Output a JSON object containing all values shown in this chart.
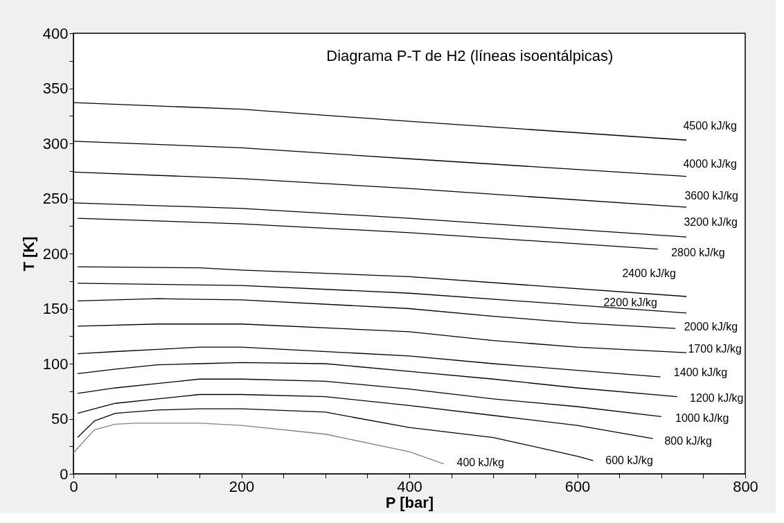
{
  "chart_data": {
    "type": "line",
    "title": "Diagrama P-T de H2 (líneas isoentálpicas)",
    "xlabel": "P [bar]",
    "ylabel": "T [K]",
    "xlim": [
      0,
      800
    ],
    "ylim": [
      0,
      400
    ],
    "xticks": [
      0,
      {
        "value": 50,
        "label": null
      },
      {
        "value": 100,
        "label": null
      },
      {
        "value": 150,
        "label": null
      },
      200,
      {
        "value": 250,
        "label": null
      },
      {
        "value": 300,
        "label": null
      },
      {
        "value": 350,
        "label": null
      },
      400,
      {
        "value": 450,
        "label": null
      },
      {
        "value": 500,
        "label": null
      },
      {
        "value": 550,
        "label": null
      },
      600,
      {
        "value": 650,
        "label": null
      },
      {
        "value": 700,
        "label": null
      },
      {
        "value": 750,
        "label": null
      },
      800
    ],
    "yticks": [
      0,
      {
        "value": 25,
        "label": null
      },
      50,
      {
        "value": 75,
        "label": null
      },
      100,
      {
        "value": 125,
        "label": null
      },
      150,
      {
        "value": 175,
        "label": null
      },
      200,
      {
        "value": 225,
        "label": null
      },
      250,
      {
        "value": 275,
        "label": null
      },
      300,
      {
        "value": 325,
        "label": null
      },
      350,
      {
        "value": 375,
        "label": null
      },
      400
    ],
    "grid": false,
    "legend": false,
    "marker": "none",
    "line_style": "solid",
    "series": [
      {
        "name": "4500 kJ/kg",
        "color": "#000000",
        "x": [
          0,
          200,
          400,
          730
        ],
        "values": [
          337,
          331,
          320,
          303
        ]
      },
      {
        "name": "4000 kJ/kg",
        "color": "#000000",
        "x": [
          0,
          200,
          400,
          730
        ],
        "values": [
          302,
          296,
          286,
          270
        ]
      },
      {
        "name": "3600 kJ/kg",
        "color": "#000000",
        "x": [
          0,
          200,
          400,
          730
        ],
        "values": [
          274,
          268,
          259,
          242
        ]
      },
      {
        "name": "3200 kJ/kg",
        "color": "#000000",
        "x": [
          0,
          200,
          400,
          730
        ],
        "values": [
          246,
          241,
          232,
          215
        ]
      },
      {
        "name": "2800 kJ/kg",
        "color": "#000000",
        "x": [
          5,
          200,
          400,
          696
        ],
        "values": [
          232,
          227,
          219,
          204
        ]
      },
      {
        "name": "2400 kJ/kg",
        "color": "#000000",
        "x": [
          5,
          150,
          200,
          400,
          730
        ],
        "values": [
          188,
          187,
          185,
          179,
          161
        ]
      },
      {
        "name": "2200 kJ/kg",
        "color": "#000000",
        "x": [
          5,
          200,
          400,
          730
        ],
        "values": [
          173,
          171,
          164,
          146
        ]
      },
      {
        "name": "2000 kJ/kg",
        "color": "#000000",
        "x": [
          5,
          100,
          200,
          400,
          500,
          600,
          717
        ],
        "values": [
          157,
          159,
          158,
          150,
          143,
          137,
          132
        ]
      },
      {
        "name": "1700 kJ/kg",
        "color": "#000000",
        "x": [
          5,
          100,
          200,
          400,
          500,
          600,
          730
        ],
        "values": [
          134,
          136,
          136,
          129,
          121,
          115,
          110
        ]
      },
      {
        "name": "1400 kJ/kg",
        "color": "#000000",
        "x": [
          5,
          50,
          100,
          150,
          200,
          400,
          500,
          600,
          699
        ],
        "values": [
          109,
          111,
          113,
          115,
          115,
          107,
          100,
          94,
          88
        ]
      },
      {
        "name": "1200 kJ/kg",
        "color": "#000000",
        "x": [
          5,
          50,
          100,
          150,
          200,
          300,
          400,
          500,
          600,
          719
        ],
        "values": [
          91,
          95,
          99,
          100,
          101,
          100,
          93,
          86,
          78,
          70
        ]
      },
      {
        "name": "1000 kJ/kg",
        "color": "#000000",
        "x": [
          5,
          50,
          100,
          150,
          200,
          300,
          400,
          500,
          600,
          700
        ],
        "values": [
          73,
          78,
          82,
          86,
          86,
          84,
          77,
          68,
          61,
          52
        ]
      },
      {
        "name": "800 kJ/kg",
        "color": "#000000",
        "x": [
          5,
          25,
          50,
          100,
          150,
          200,
          300,
          400,
          500,
          600,
          690
        ],
        "values": [
          55,
          59,
          64,
          68,
          72,
          72,
          70,
          62,
          53,
          44,
          32
        ]
      },
      {
        "name": "600 kJ/kg",
        "color": "#000000",
        "x": [
          5,
          25,
          50,
          100,
          150,
          200,
          300,
          400,
          500,
          600,
          619
        ],
        "values": [
          33,
          48,
          55,
          58,
          59,
          59,
          56,
          42,
          33,
          16,
          12
        ]
      },
      {
        "name": "400 kJ/kg",
        "color": "#808080",
        "x": [
          0,
          25,
          50,
          75,
          150,
          200,
          300,
          400,
          441
        ],
        "values": [
          19,
          40,
          45,
          46,
          46,
          44,
          36,
          20,
          9
        ]
      }
    ]
  }
}
